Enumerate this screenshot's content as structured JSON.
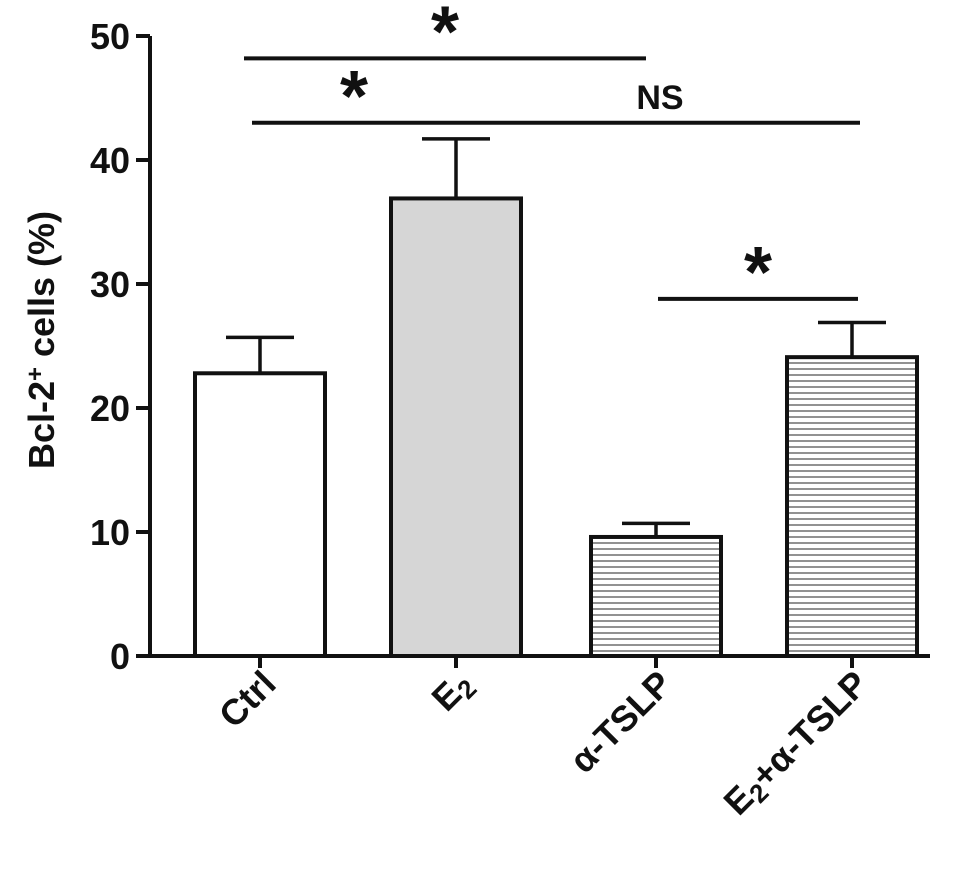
{
  "chart_data": {
    "type": "bar",
    "categories": [
      "Ctrl",
      "E2",
      "α-TSLP",
      "E2+α-TSLP"
    ],
    "category_labels": [
      {
        "main": "Ctrl",
        "parts": [
          {
            "text": "Ctrl",
            "sub": false
          }
        ]
      },
      {
        "main": "E2",
        "parts": [
          {
            "text": "E",
            "sub": false
          },
          {
            "text": "2",
            "sub": true
          }
        ]
      },
      {
        "main": "α-TSLP",
        "parts": [
          {
            "text": "α-TSLP",
            "sub": false
          }
        ]
      },
      {
        "main": "E2+α-TSLP",
        "parts": [
          {
            "text": "E",
            "sub": false
          },
          {
            "text": "2",
            "sub": true
          },
          {
            "text": "+α-TSLP",
            "sub": false
          }
        ]
      }
    ],
    "values": [
      22.8,
      36.9,
      9.6,
      24.1
    ],
    "errors": [
      2.9,
      4.8,
      1.1,
      2.8
    ],
    "fills": [
      "white",
      "lightgray",
      "hstripe",
      "hstripe"
    ],
    "ylabel": "Bcl-2+ cells (%)",
    "ylabel_parts": [
      {
        "text": "Bcl-2",
        "sup": false
      },
      {
        "text": "+",
        "sup": true
      },
      {
        "text": " cells (%)",
        "sup": false
      }
    ],
    "ylim": [
      0,
      50
    ],
    "yticks": [
      0,
      10,
      20,
      30,
      40,
      50
    ],
    "grid": false,
    "legend": "none",
    "significance": [
      {
        "from": "Ctrl",
        "to": "α-TSLP",
        "label": "*",
        "y": 48.2
      },
      {
        "from": "Ctrl",
        "to": "E2",
        "label": "*",
        "y": 43
      },
      {
        "from": "E2",
        "to": "E2+α-TSLP",
        "label": "NS",
        "y": 43
      },
      {
        "from": "α-TSLP",
        "to": "E2+α-TSLP",
        "label": "*",
        "y": 28.8
      }
    ]
  },
  "colors": {
    "axis": "#111111",
    "bar_white": "#ffffff",
    "bar_gray": "#d6d6d6",
    "stripe_bg": "#ffffff",
    "stripe_line": "#777777"
  }
}
